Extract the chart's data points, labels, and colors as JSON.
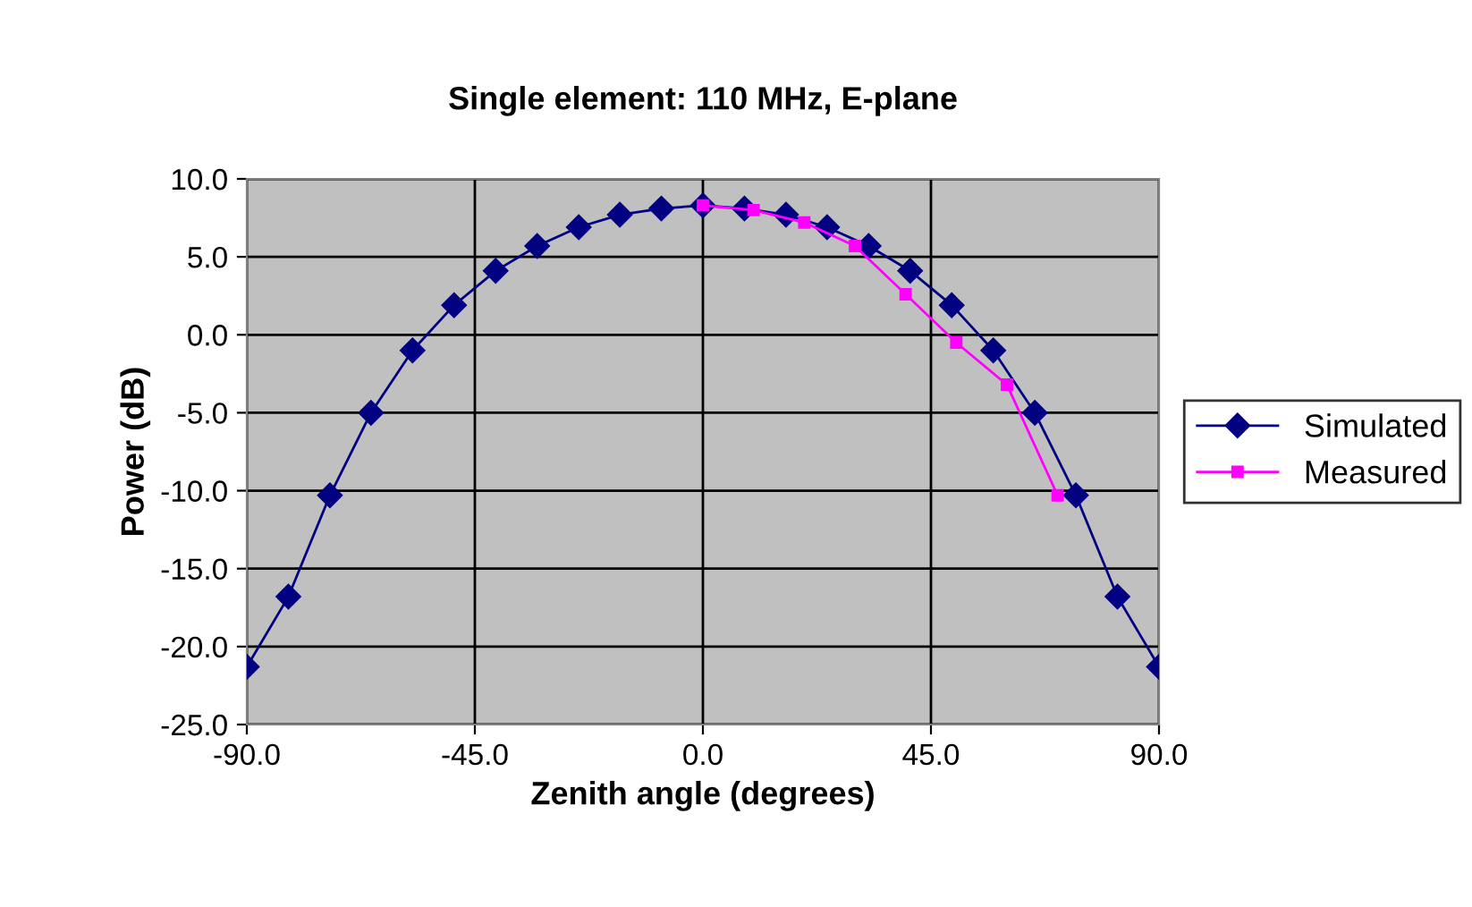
{
  "chart_data": {
    "type": "line",
    "title": "Single element: 110 MHz, E-plane",
    "xlabel": "Zenith angle (degrees)",
    "ylabel": "Power (dB)",
    "xlim": [
      -90,
      90
    ],
    "xticks": [
      {
        "value": -90,
        "label": "-90.0"
      },
      {
        "value": -45,
        "label": "-45.0"
      },
      {
        "value": 0,
        "label": "0.0"
      },
      {
        "value": 45,
        "label": "45.0"
      },
      {
        "value": 90,
        "label": "90.0"
      }
    ],
    "ylim": [
      -25,
      10
    ],
    "yticks": [
      {
        "value": -25,
        "label": "-25.0"
      },
      {
        "value": -20,
        "label": "-20.0"
      },
      {
        "value": -15,
        "label": "-15.0"
      },
      {
        "value": -10,
        "label": "-10.0"
      },
      {
        "value": -5,
        "label": "-5.0"
      },
      {
        "value": 0,
        "label": "0.0"
      },
      {
        "value": 5,
        "label": "5.0"
      },
      {
        "value": 10,
        "label": "10.0"
      }
    ],
    "grid": true,
    "legend": "right",
    "series": [
      {
        "name": "Simulated",
        "color": "#000080",
        "marker": "diamond",
        "x": [
          -90,
          -81.8,
          -73.6,
          -65.5,
          -57.3,
          -49.1,
          -40.9,
          -32.7,
          -24.5,
          -16.4,
          -8.2,
          0,
          8.2,
          16.4,
          24.5,
          32.7,
          40.9,
          49.1,
          57.3,
          65.5,
          73.6,
          81.8,
          90
        ],
        "values": [
          -21.3,
          -16.8,
          -10.3,
          -5.0,
          -1.0,
          1.9,
          4.1,
          5.7,
          6.9,
          7.7,
          8.1,
          8.3,
          8.1,
          7.7,
          6.9,
          5.7,
          4.1,
          1.9,
          -1.0,
          -5.0,
          -10.3,
          -16.8,
          -21.3
        ]
      },
      {
        "name": "Measured",
        "color": "#ff00ff",
        "marker": "square",
        "x": [
          0,
          10,
          20,
          30,
          40,
          50,
          60,
          70
        ],
        "values": [
          8.3,
          8.0,
          7.2,
          5.7,
          2.6,
          -0.5,
          -3.2,
          -10.3
        ]
      }
    ]
  }
}
